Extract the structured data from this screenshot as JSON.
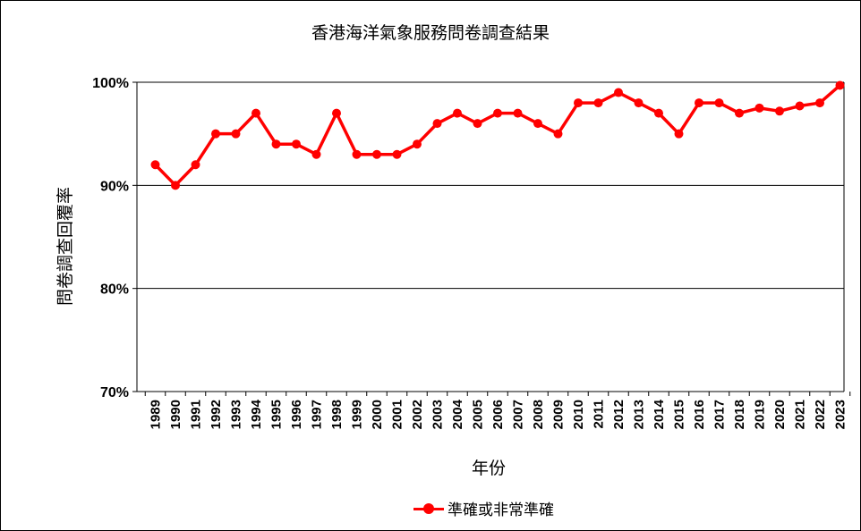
{
  "chart_data": {
    "type": "line",
    "title": "香港海洋氣象服務問卷調查結果",
    "xlabel": "年份",
    "ylabel": "問卷調查回覆率",
    "ylim": [
      70,
      100
    ],
    "y_ticks": [
      {
        "value": 70,
        "label": "70%"
      },
      {
        "value": 80,
        "label": "80%"
      },
      {
        "value": 90,
        "label": "90%"
      },
      {
        "value": 100,
        "label": "100%"
      }
    ],
    "grid": true,
    "legend_position": "bottom",
    "categories": [
      "1989",
      "1990",
      "1991",
      "1992",
      "1993",
      "1994",
      "1995",
      "1996",
      "1997",
      "1998",
      "1999",
      "2000",
      "2001",
      "2002",
      "2003",
      "2004",
      "2005",
      "2006",
      "2007",
      "2008",
      "2009",
      "2010",
      "2011",
      "2012",
      "2013",
      "2014",
      "2015",
      "2016",
      "2017",
      "2018",
      "2019",
      "2020",
      "2021",
      "2022",
      "2023"
    ],
    "series": [
      {
        "name": "準確或非常準確",
        "color": "#ff0000",
        "values": [
          92,
          90,
          92,
          95,
          95,
          97,
          94,
          94,
          93,
          97,
          93,
          93,
          93,
          94,
          96,
          97,
          96,
          97,
          97,
          96,
          95,
          98,
          98,
          99,
          98,
          97,
          95,
          98,
          98,
          97,
          97.5,
          97.2,
          97.7,
          98,
          99.7
        ]
      }
    ]
  }
}
